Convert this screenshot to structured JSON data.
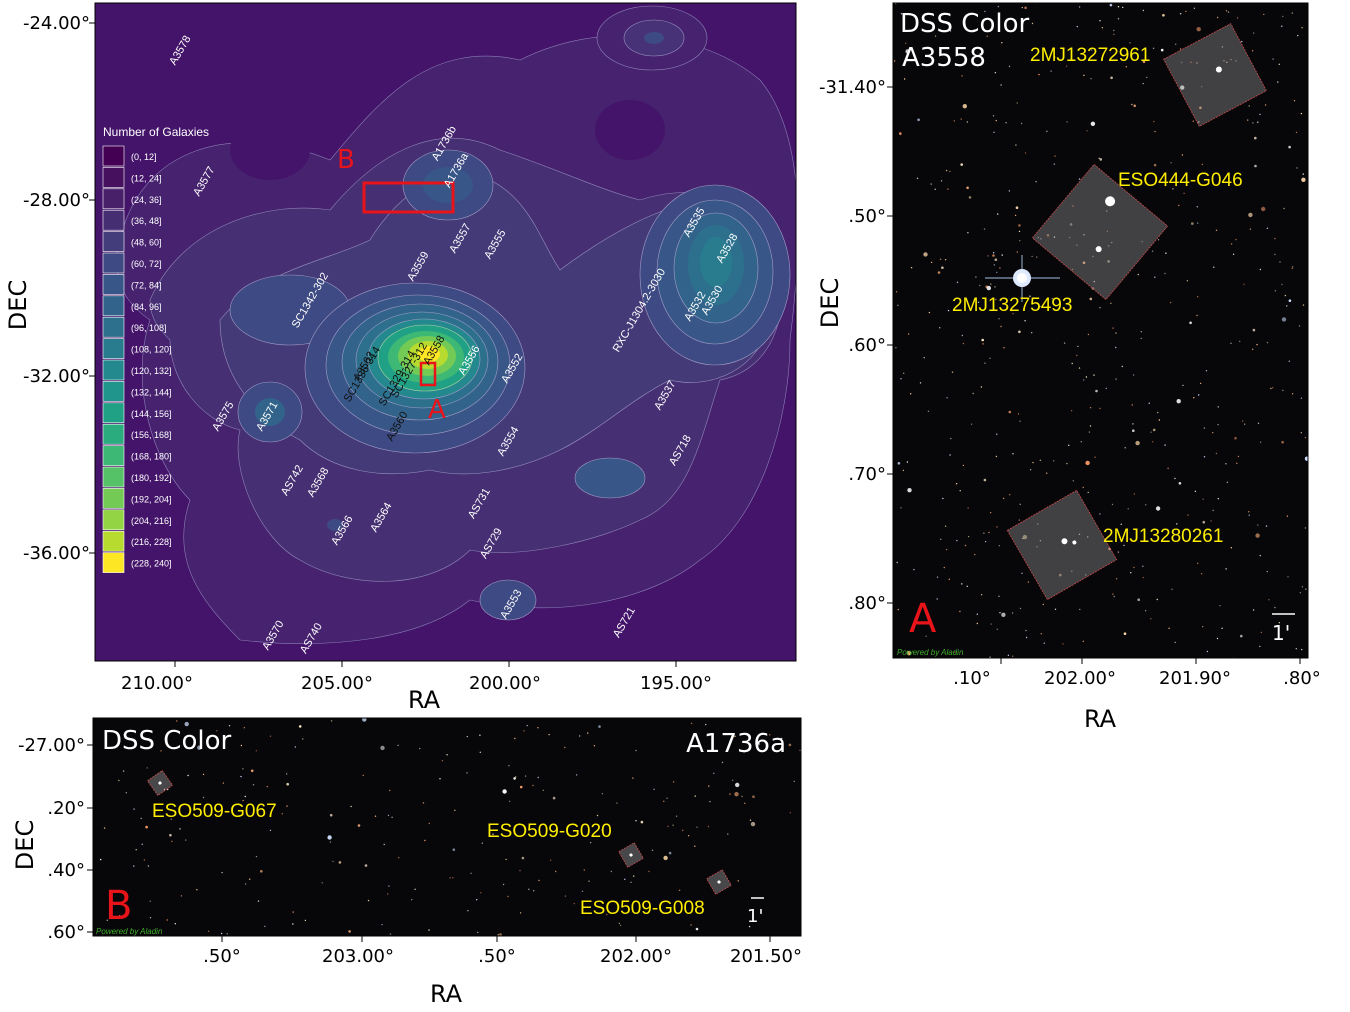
{
  "colors": {
    "accent_red": "#e8141a",
    "gal_label": "#ffee00",
    "bg_map": "#44146a"
  },
  "main_map": {
    "xlabel": "RA",
    "ylabel": "DEC",
    "xticks": [
      "210.00°",
      "205.00°",
      "200.00°",
      "195.00°"
    ],
    "yticks": [
      "-24.00°",
      "-28.00°",
      "-32.00°",
      "-36.00°"
    ],
    "legend_title": "Number of Galaxies",
    "legend_bins": [
      "(0, 12]",
      "(12, 24]",
      "(24, 36]",
      "(36, 48]",
      "(48, 60]",
      "(60, 72]",
      "(72, 84]",
      "(84, 96]",
      "(96, 108]",
      "(108, 120]",
      "(120, 132]",
      "(132, 144]",
      "(144, 156]",
      "(156, 168]",
      "(168, 180]",
      "(180, 192]",
      "(192, 204]",
      "(204, 216]",
      "(216, 228]",
      "(228, 240]"
    ],
    "legend_colors": [
      "#440154",
      "#46105f",
      "#472069",
      "#462e72",
      "#433d7b",
      "#3e4a83",
      "#385788",
      "#32648b",
      "#2d708e",
      "#287c8e",
      "#23898e",
      "#1f958b",
      "#20a186",
      "#2bac7f",
      "#3eb875",
      "#56c267",
      "#73cb56",
      "#92d444",
      "#b7dc2f",
      "#fde725"
    ],
    "box_labels": [
      "A",
      "B"
    ],
    "cluster_labels": [
      "A3578",
      "A3577",
      "A1736b",
      "A1736a",
      "A3557",
      "A3555",
      "A3559",
      "SC1342-302",
      "A3562",
      "SC1336-314",
      "SC1329-314",
      "SC1327-312",
      "A3558",
      "A3556",
      "A3552",
      "RXC-J1304.2-3030",
      "A3535",
      "A3528",
      "A3532",
      "A3530",
      "A3575",
      "A3571",
      "A3560",
      "A3537",
      "A3554",
      "AS718",
      "AS742",
      "A3568",
      "AS731",
      "A3566",
      "A3564",
      "AS729",
      "A3553",
      "A3570",
      "AS740",
      "AS721"
    ]
  },
  "panel_a": {
    "title_line1": "DSS Color",
    "title_line2": "A3558",
    "letter": "A",
    "xlabel": "RA",
    "ylabel": "DEC",
    "xticks": [
      ".10°",
      "202.00°",
      "201.90°",
      ".80°"
    ],
    "yticks": [
      "-31.40°",
      ".50°",
      ".60°",
      ".70°",
      ".80°"
    ],
    "galaxies": [
      "2MJ13272961",
      "ESO444-G046",
      "2MJ13275493",
      "2MJ13280261"
    ],
    "scale": "1'",
    "credit": "Powered by Aladin"
  },
  "panel_b": {
    "title_left": "DSS Color",
    "title_right": "A1736a",
    "letter": "B",
    "xlabel": "RA",
    "ylabel": "DEC",
    "xticks": [
      ".50°",
      "203.00°",
      ".50°",
      "202.00°",
      "201.50°"
    ],
    "yticks": [
      "-27.00°",
      ".20°",
      ".40°",
      ".60°"
    ],
    "galaxies": [
      "ESO509-G067",
      "ESO509-G020",
      "ESO509-G008"
    ],
    "scale": "1'",
    "credit": "Powered by Aladin"
  }
}
